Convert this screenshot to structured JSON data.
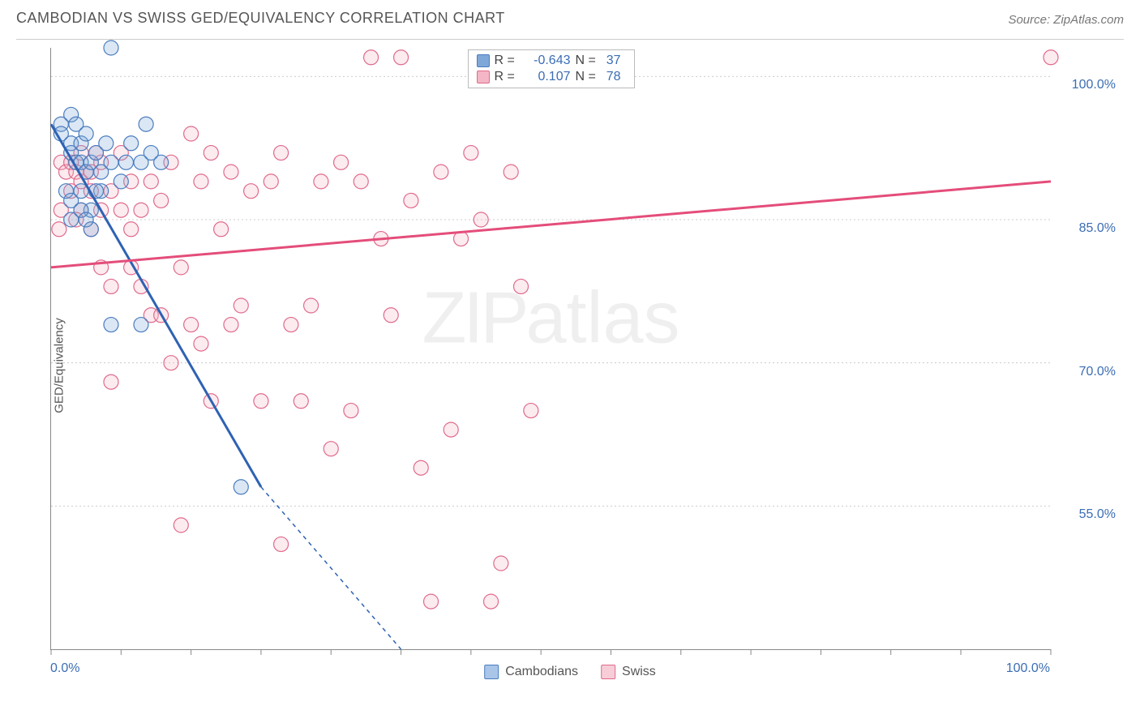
{
  "header": {
    "title": "CAMBODIAN VS SWISS GED/EQUIVALENCY CORRELATION CHART",
    "source": "Source: ZipAtlas.com"
  },
  "ylabel": "GED/Equivalency",
  "watermark": {
    "bold": "ZIP",
    "light": "atlas"
  },
  "chart": {
    "type": "scatter",
    "xlim": [
      0,
      100
    ],
    "ylim": [
      40,
      103
    ],
    "ytick_values": [
      55.0,
      70.0,
      85.0,
      100.0
    ],
    "ytick_labels": [
      "55.0%",
      "70.0%",
      "85.0%",
      "100.0%"
    ],
    "xtick_positions": [
      0,
      7,
      14,
      21,
      28,
      35,
      42,
      49,
      56,
      63,
      70,
      77,
      84,
      91,
      100
    ],
    "xtick_labels": {
      "start": "0.0%",
      "end": "100.0%"
    },
    "grid_color": "#cccccc",
    "axis_color": "#888888",
    "background_color": "#ffffff",
    "marker_radius": 9,
    "marker_stroke_width": 1.2,
    "marker_fill_opacity": 0.28,
    "trend_width": 3,
    "series": [
      {
        "key": "cambodians",
        "label": "Cambodians",
        "color_fill": "#7fa8d9",
        "color_stroke": "#4a7dc0",
        "trend_color": "#2e62b3",
        "trend": {
          "x1": 0,
          "y1": 95,
          "x2": 21,
          "y2": 57,
          "dash_to_x": 35,
          "dash_to_y": 40
        },
        "stats": {
          "R": "-0.643",
          "N": "37"
        },
        "points": [
          [
            1,
            95
          ],
          [
            1,
            94
          ],
          [
            2,
            96
          ],
          [
            2,
            93
          ],
          [
            2.5,
            95
          ],
          [
            2,
            92
          ],
          [
            2.5,
            91
          ],
          [
            3,
            93
          ],
          [
            3,
            91
          ],
          [
            3.5,
            94
          ],
          [
            3.5,
            90
          ],
          [
            4,
            91
          ],
          [
            4.5,
            92
          ],
          [
            5,
            90
          ],
          [
            5.5,
            93
          ],
          [
            6,
            103
          ],
          [
            6,
            91
          ],
          [
            7,
            89
          ],
          [
            7.5,
            91
          ],
          [
            8,
            93
          ],
          [
            9,
            91
          ],
          [
            9.5,
            95
          ],
          [
            10,
            92
          ],
          [
            11,
            91
          ],
          [
            1.5,
            88
          ],
          [
            2,
            87
          ],
          [
            3,
            88
          ],
          [
            4,
            86
          ],
          [
            5,
            88
          ],
          [
            2,
            85
          ],
          [
            4,
            84
          ],
          [
            6,
            74
          ],
          [
            9,
            74
          ],
          [
            3,
            86
          ],
          [
            3.5,
            85
          ],
          [
            19,
            57
          ],
          [
            4.5,
            88
          ]
        ]
      },
      {
        "key": "swiss",
        "label": "Swiss",
        "color_fill": "#f4b6c6",
        "color_stroke": "#e06a8c",
        "trend_color": "#e44d7a",
        "trend": {
          "x1": 0,
          "y1": 80,
          "x2": 100,
          "y2": 89
        },
        "stats": {
          "R": "0.107",
          "N": "78"
        },
        "points": [
          [
            1,
            91
          ],
          [
            1.5,
            90
          ],
          [
            2,
            91
          ],
          [
            2.5,
            90
          ],
          [
            2,
            88
          ],
          [
            3,
            89
          ],
          [
            3.5,
            90
          ],
          [
            3,
            86
          ],
          [
            4,
            88
          ],
          [
            4,
            84
          ],
          [
            5,
            86
          ],
          [
            5,
            80
          ],
          [
            6,
            88
          ],
          [
            6,
            78
          ],
          [
            7,
            86
          ],
          [
            8,
            80
          ],
          [
            8,
            89
          ],
          [
            9,
            86
          ],
          [
            10,
            89
          ],
          [
            10,
            75
          ],
          [
            11,
            87
          ],
          [
            12,
            91
          ],
          [
            13,
            80
          ],
          [
            14,
            94
          ],
          [
            15,
            89
          ],
          [
            15,
            72
          ],
          [
            16,
            92
          ],
          [
            17,
            84
          ],
          [
            18,
            90
          ],
          [
            19,
            76
          ],
          [
            20,
            88
          ],
          [
            21,
            66
          ],
          [
            22,
            89
          ],
          [
            23,
            92
          ],
          [
            24,
            74
          ],
          [
            25,
            66
          ],
          [
            26,
            76
          ],
          [
            27,
            89
          ],
          [
            28,
            61
          ],
          [
            29,
            91
          ],
          [
            30,
            65
          ],
          [
            31,
            89
          ],
          [
            32,
            102
          ],
          [
            33,
            83
          ],
          [
            34,
            75
          ],
          [
            35,
            102
          ],
          [
            36,
            87
          ],
          [
            37,
            59
          ],
          [
            38,
            45
          ],
          [
            39,
            90
          ],
          [
            40,
            63
          ],
          [
            41,
            83
          ],
          [
            42,
            92
          ],
          [
            43,
            85
          ],
          [
            44,
            45
          ],
          [
            45,
            49
          ],
          [
            46,
            90
          ],
          [
            47,
            78
          ],
          [
            48,
            65
          ],
          [
            6,
            68
          ],
          [
            13,
            53
          ],
          [
            23,
            51
          ],
          [
            100,
            102
          ],
          [
            3,
            92
          ],
          [
            4,
            90
          ],
          [
            5,
            91
          ],
          [
            11,
            75
          ],
          [
            14,
            74
          ],
          [
            16,
            66
          ],
          [
            18,
            74
          ],
          [
            8,
            84
          ],
          [
            9,
            78
          ],
          [
            12,
            70
          ],
          [
            7,
            92
          ],
          [
            4.5,
            92
          ],
          [
            2.5,
            85
          ],
          [
            1,
            86
          ],
          [
            0.8,
            84
          ]
        ]
      }
    ]
  },
  "legend": {
    "items": [
      {
        "label": "Cambodians",
        "fill": "#a9c5e8",
        "stroke": "#4a7dc0"
      },
      {
        "label": "Swiss",
        "fill": "#f7cdd8",
        "stroke": "#e06a8c"
      }
    ]
  }
}
